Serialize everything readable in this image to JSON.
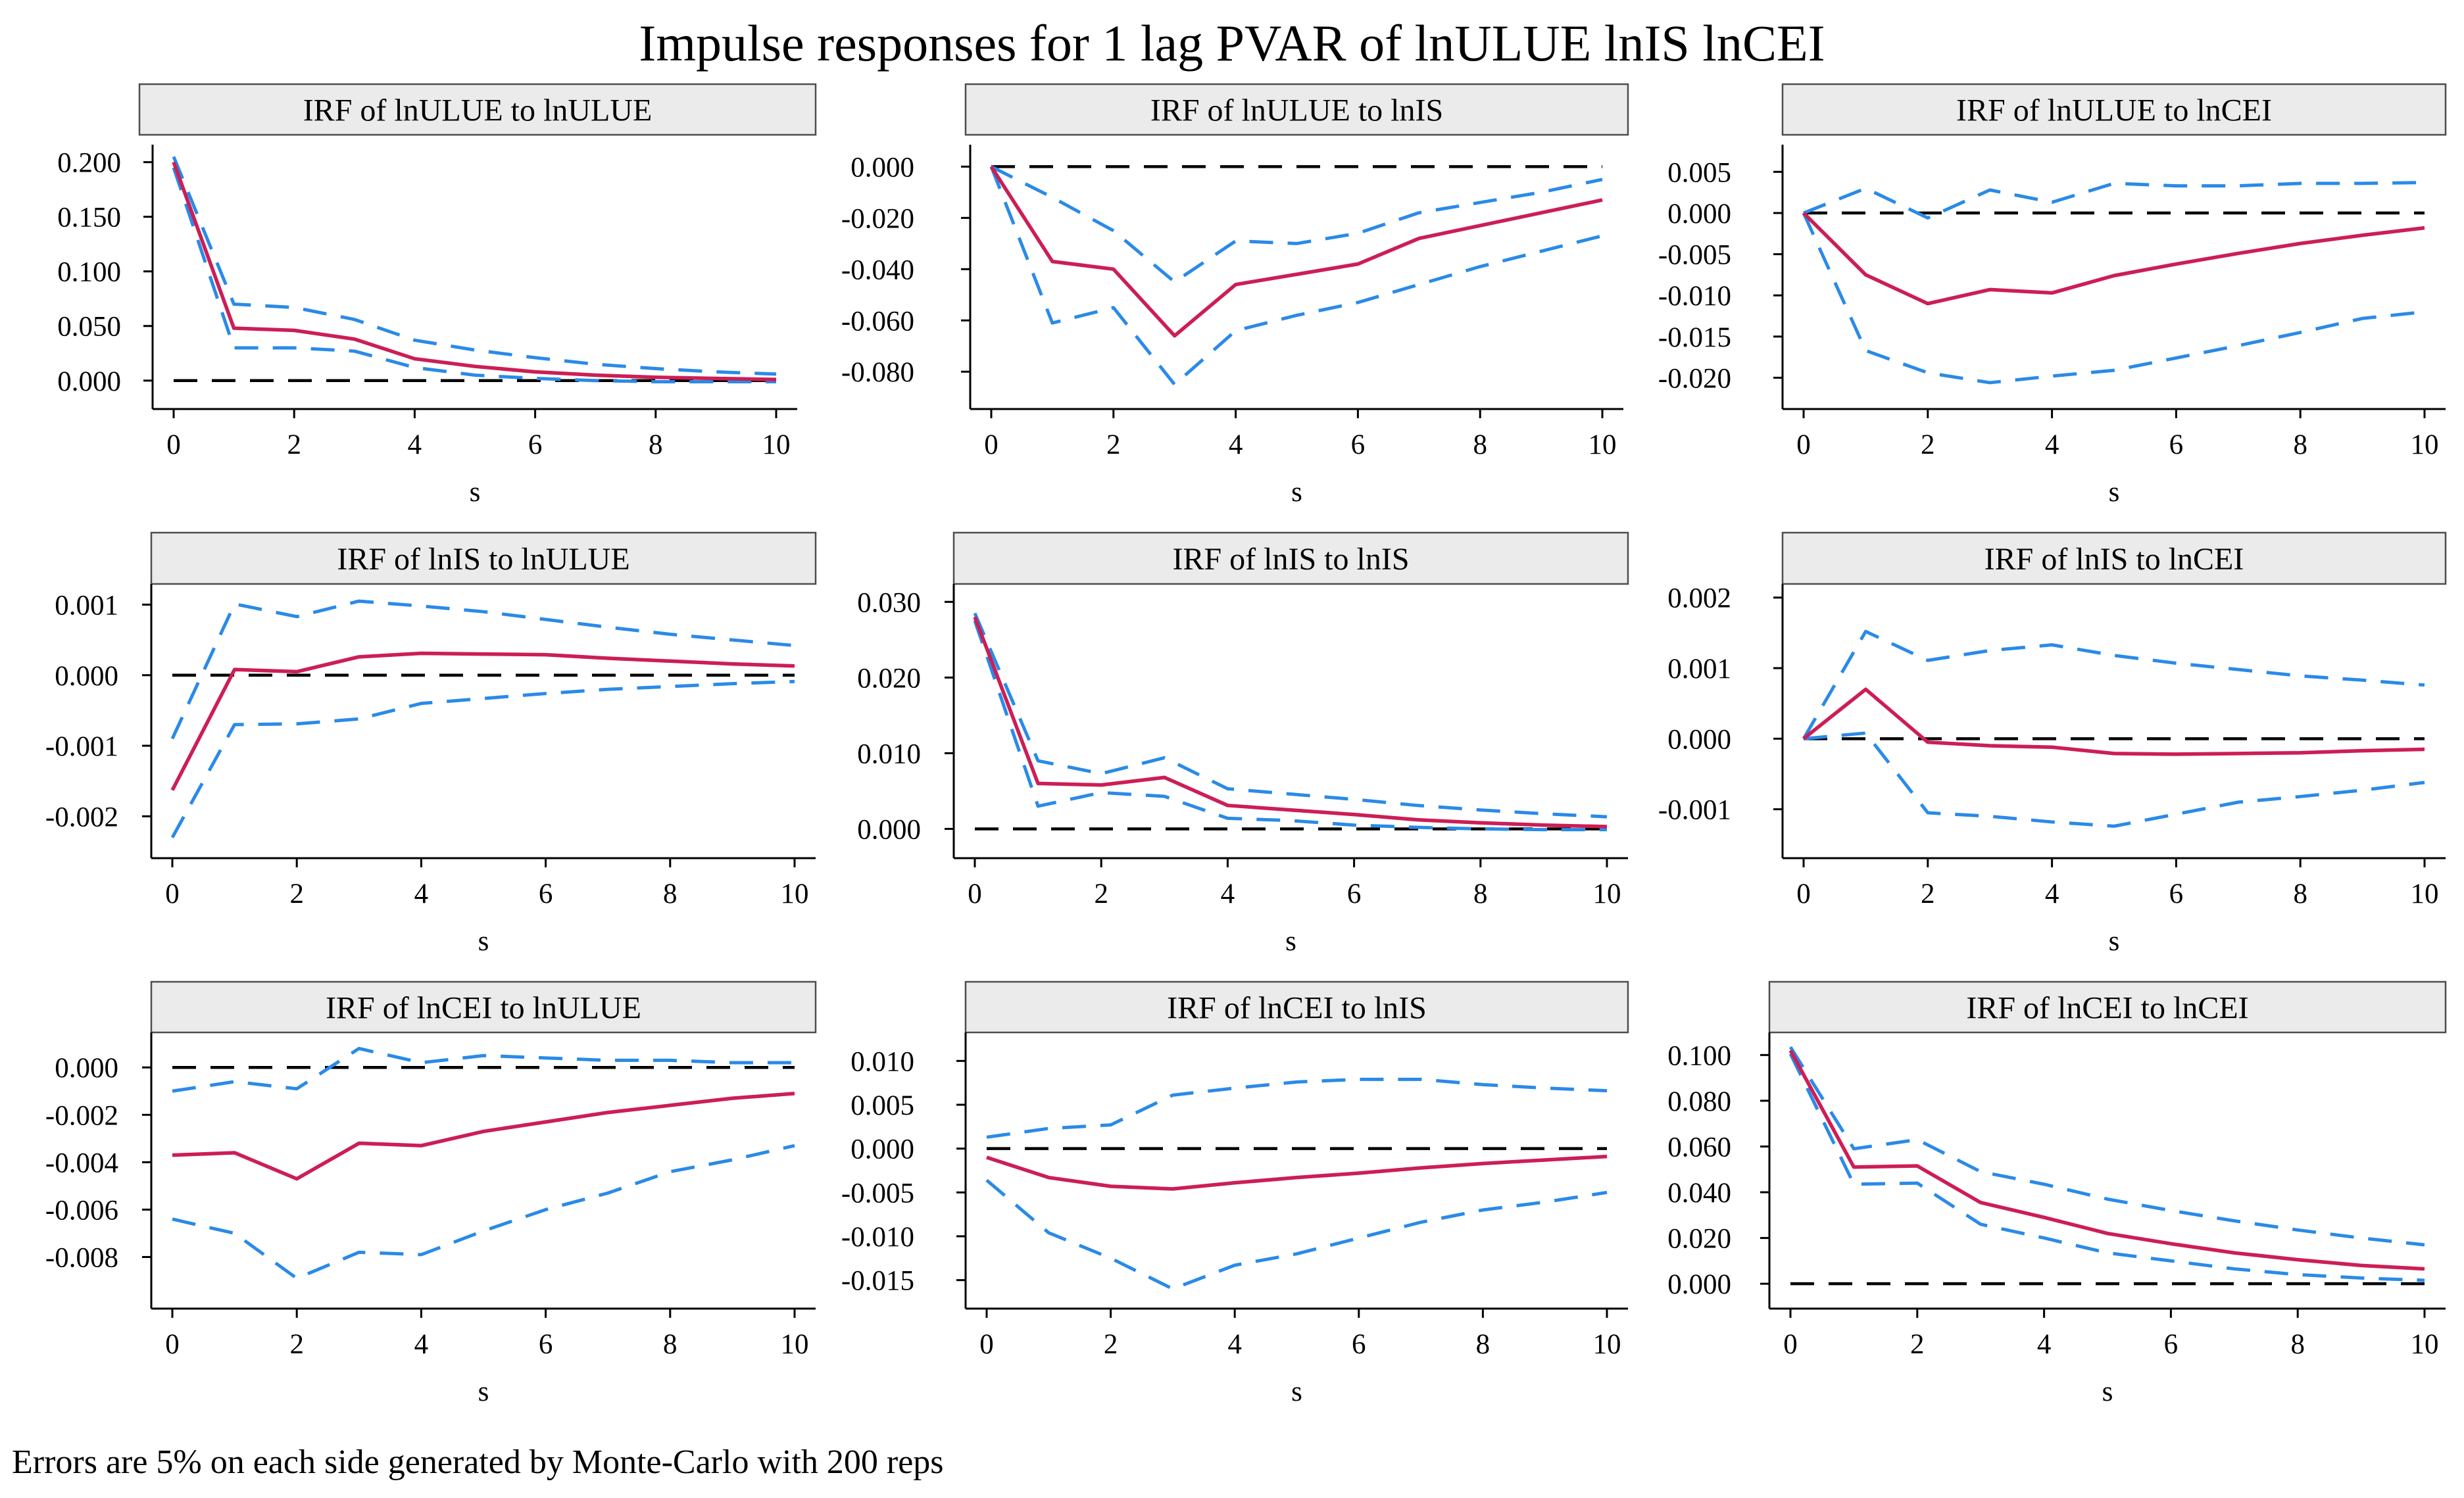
{
  "title": "Impulse responses for 1 lag PVAR of lnULUE lnIS lnCEI",
  "note": "Errors are 5% on each side generated by Monte-Carlo with 200 reps",
  "colors": {
    "irf": "#cc1e55",
    "ci": "#2a8ae8",
    "zero": "#000000",
    "strip": "#ebebeb"
  },
  "chart_data": [
    {
      "type": "line",
      "title": "IRF of lnULUE to lnULUE",
      "xlabel": "s",
      "x": [
        0,
        1,
        2,
        3,
        4,
        5,
        6,
        7,
        8,
        9,
        10
      ],
      "xticks": [
        "0",
        "2",
        "4",
        "6",
        "8",
        "10"
      ],
      "yticks": [
        "0.000",
        "0.050",
        "0.100",
        "0.150",
        "0.200"
      ],
      "ytick_values": [
        0,
        0.05,
        0.1,
        0.15,
        0.2
      ],
      "ylim": [
        -0.02,
        0.21
      ],
      "series": [
        {
          "role": "irf",
          "values": [
            0.2,
            0.048,
            0.046,
            0.038,
            0.02,
            0.013,
            0.008,
            0.005,
            0.003,
            0.002,
            0.001
          ]
        },
        {
          "role": "upper",
          "values": [
            0.205,
            0.07,
            0.067,
            0.056,
            0.037,
            0.028,
            0.021,
            0.015,
            0.011,
            0.008,
            0.006
          ]
        },
        {
          "role": "lower",
          "values": [
            0.195,
            0.03,
            0.03,
            0.027,
            0.012,
            0.005,
            0.002,
            0.0,
            -0.001,
            -0.001,
            -0.001
          ]
        }
      ]
    },
    {
      "type": "line",
      "title": "IRF of lnULUE to lnIS",
      "xlabel": "s",
      "x": [
        0,
        1,
        2,
        3,
        4,
        5,
        6,
        7,
        8,
        9,
        10
      ],
      "xticks": [
        "0",
        "2",
        "4",
        "6",
        "8",
        "10"
      ],
      "yticks": [
        "0.000",
        "-0.020",
        "-0.040",
        "-0.060",
        "-0.080"
      ],
      "ytick_values": [
        0,
        -0.02,
        -0.04,
        -0.06,
        -0.08
      ],
      "ylim": [
        -0.092,
        0.006
      ],
      "series": [
        {
          "role": "irf",
          "values": [
            0.0,
            -0.037,
            -0.04,
            -0.066,
            -0.046,
            -0.042,
            -0.038,
            -0.028,
            -0.023,
            -0.018,
            -0.013
          ]
        },
        {
          "role": "upper",
          "values": [
            0.0,
            -0.012,
            -0.025,
            -0.045,
            -0.029,
            -0.03,
            -0.026,
            -0.018,
            -0.014,
            -0.01,
            -0.005
          ]
        },
        {
          "role": "lower",
          "values": [
            0.0,
            -0.061,
            -0.055,
            -0.085,
            -0.064,
            -0.058,
            -0.053,
            -0.046,
            -0.039,
            -0.033,
            -0.027
          ]
        }
      ]
    },
    {
      "type": "line",
      "title": "IRF of lnULUE to lnCEI",
      "xlabel": "s",
      "x": [
        0,
        1,
        2,
        3,
        4,
        5,
        6,
        7,
        8,
        9,
        10
      ],
      "xticks": [
        "0",
        "2",
        "4",
        "6",
        "8",
        "10"
      ],
      "yticks": [
        "0.005",
        "0.000",
        "-0.005",
        "-0.010",
        "-0.015",
        "-0.020"
      ],
      "ytick_values": [
        0.005,
        0,
        -0.005,
        -0.01,
        -0.015,
        -0.02
      ],
      "ylim": [
        -0.023,
        0.0075
      ],
      "series": [
        {
          "role": "irf",
          "values": [
            0.0,
            -0.0075,
            -0.011,
            -0.0093,
            -0.0097,
            -0.0076,
            -0.0062,
            -0.0049,
            -0.0037,
            -0.0027,
            -0.0018
          ]
        },
        {
          "role": "upper",
          "values": [
            0.0,
            0.003,
            -0.0006,
            0.0028,
            0.0013,
            0.0036,
            0.0033,
            0.0033,
            0.0036,
            0.0036,
            0.0037
          ]
        },
        {
          "role": "lower",
          "values": [
            0.0,
            -0.0167,
            -0.0194,
            -0.0206,
            -0.0198,
            -0.0191,
            -0.0176,
            -0.0161,
            -0.0145,
            -0.0128,
            -0.012
          ]
        }
      ]
    },
    {
      "type": "line",
      "title": "IRF of lnIS to lnULUE",
      "xlabel": "s",
      "x": [
        0,
        1,
        2,
        3,
        4,
        5,
        6,
        7,
        8,
        9,
        10
      ],
      "xticks": [
        "0",
        "2",
        "4",
        "6",
        "8",
        "10"
      ],
      "yticks": [
        "0.001",
        "0.000",
        "-0.001",
        "-0.002"
      ],
      "ytick_values": [
        0.001,
        0,
        -0.001,
        -0.002
      ],
      "ylim": [
        -0.0025,
        0.0012
      ],
      "series": [
        {
          "role": "irf",
          "values": [
            -0.00163,
            8e-05,
            5e-05,
            0.00026,
            0.00031,
            0.0003,
            0.00029,
            0.00024,
            0.0002,
            0.00016,
            0.00013
          ]
        },
        {
          "role": "upper",
          "values": [
            -0.0009,
            0.00101,
            0.00083,
            0.00105,
            0.00098,
            0.0009,
            0.00079,
            0.00068,
            0.00058,
            0.0005,
            0.00042
          ]
        },
        {
          "role": "lower",
          "values": [
            -0.0023,
            -0.0007,
            -0.00069,
            -0.00062,
            -0.0004,
            -0.00033,
            -0.00026,
            -0.0002,
            -0.00016,
            -0.00012,
            -9e-05
          ]
        }
      ]
    },
    {
      "type": "line",
      "title": "IRF of lnIS to lnIS",
      "xlabel": "s",
      "x": [
        0,
        1,
        2,
        3,
        4,
        5,
        6,
        7,
        8,
        9,
        10
      ],
      "xticks": [
        "0",
        "2",
        "4",
        "6",
        "8",
        "10"
      ],
      "yticks": [
        "0.030",
        "0.020",
        "0.010",
        "0.000"
      ],
      "ytick_values": [
        0.03,
        0.02,
        0.01,
        0
      ],
      "ylim": [
        -0.003,
        0.0315
      ],
      "series": [
        {
          "role": "irf",
          "values": [
            0.028,
            0.006,
            0.0058,
            0.0068,
            0.0031,
            0.0025,
            0.0019,
            0.0012,
            0.0008,
            0.0005,
            0.0003
          ]
        },
        {
          "role": "upper",
          "values": [
            0.0285,
            0.009,
            0.0073,
            0.0094,
            0.0053,
            0.0046,
            0.0039,
            0.0031,
            0.0025,
            0.002,
            0.0016
          ]
        },
        {
          "role": "lower",
          "values": [
            0.0275,
            0.003,
            0.0048,
            0.0043,
            0.0014,
            0.0011,
            0.0005,
            0.0002,
            0.0,
            -0.0001,
            -0.0001
          ]
        }
      ]
    },
    {
      "type": "line",
      "title": "IRF of lnIS to lnCEI",
      "xlabel": "s",
      "x": [
        0,
        1,
        2,
        3,
        4,
        5,
        6,
        7,
        8,
        9,
        10
      ],
      "xticks": [
        "0",
        "2",
        "4",
        "6",
        "8",
        "10"
      ],
      "yticks": [
        "0.002",
        "0.001",
        "0.000",
        "-0.001"
      ],
      "ytick_values": [
        0.002,
        0.001,
        0,
        -0.001
      ],
      "ylim": [
        -0.0016,
        0.0021
      ],
      "series": [
        {
          "role": "irf",
          "values": [
            0.0,
            0.0007,
            -5e-05,
            -0.0001,
            -0.00012,
            -0.00021,
            -0.00022,
            -0.00021,
            -0.0002,
            -0.00017,
            -0.00015
          ]
        },
        {
          "role": "upper",
          "values": [
            0.0,
            0.00152,
            0.00111,
            0.00125,
            0.00133,
            0.00118,
            0.00107,
            0.00098,
            0.00089,
            0.00083,
            0.00076
          ]
        },
        {
          "role": "lower",
          "values": [
            0.0,
            8e-05,
            -0.00105,
            -0.0011,
            -0.00118,
            -0.00124,
            -0.00107,
            -0.0009,
            -0.00082,
            -0.00073,
            -0.00062
          ]
        }
      ]
    },
    {
      "type": "line",
      "title": "IRF of lnCEI to lnULUE",
      "xlabel": "s",
      "x": [
        0,
        1,
        2,
        3,
        4,
        5,
        6,
        7,
        8,
        9,
        10
      ],
      "xticks": [
        "0",
        "2",
        "4",
        "6",
        "8",
        "10"
      ],
      "yticks": [
        "0.000",
        "-0.002",
        "-0.004",
        "-0.006",
        "-0.008"
      ],
      "ytick_values": [
        0,
        -0.002,
        -0.004,
        -0.006,
        -0.008
      ],
      "ylim": [
        -0.0099,
        0.0012
      ],
      "series": [
        {
          "role": "irf",
          "values": [
            -0.0037,
            -0.0036,
            -0.0047,
            -0.0032,
            -0.0033,
            -0.0027,
            -0.0023,
            -0.0019,
            -0.0016,
            -0.0013,
            -0.0011
          ]
        },
        {
          "role": "upper",
          "values": [
            -0.001,
            -0.0006,
            -0.0009,
            0.0008,
            0.0002,
            0.0005,
            0.0004,
            0.0003,
            0.0003,
            0.0002,
            0.0002
          ]
        },
        {
          "role": "lower",
          "values": [
            -0.0064,
            -0.007,
            -0.0089,
            -0.0078,
            -0.0079,
            -0.0069,
            -0.006,
            -0.0053,
            -0.0044,
            -0.0039,
            -0.0033
          ]
        }
      ]
    },
    {
      "type": "line",
      "title": "IRF of lnCEI to lnIS",
      "xlabel": "s",
      "x": [
        0,
        1,
        2,
        3,
        4,
        5,
        6,
        7,
        8,
        9,
        10
      ],
      "xticks": [
        "0",
        "2",
        "4",
        "6",
        "8",
        "10"
      ],
      "yticks": [
        "0.010",
        "0.005",
        "0.000",
        "-0.005",
        "-0.010",
        "-0.015"
      ],
      "ytick_values": [
        0.01,
        0.005,
        0,
        -0.005,
        -0.01,
        -0.015
      ],
      "ylim": [
        -0.0175,
        0.0125
      ],
      "series": [
        {
          "role": "irf",
          "values": [
            -0.001,
            -0.0033,
            -0.0043,
            -0.0046,
            -0.0039,
            -0.0033,
            -0.0028,
            -0.0022,
            -0.0017,
            -0.0013,
            -0.0009
          ]
        },
        {
          "role": "upper",
          "values": [
            0.0013,
            0.0023,
            0.0027,
            0.0061,
            0.0069,
            0.0076,
            0.0079,
            0.0079,
            0.0073,
            0.0069,
            0.0066
          ]
        },
        {
          "role": "lower",
          "values": [
            -0.0036,
            -0.0096,
            -0.0125,
            -0.016,
            -0.0133,
            -0.012,
            -0.0102,
            -0.0084,
            -0.007,
            -0.0061,
            -0.005
          ]
        }
      ]
    },
    {
      "type": "line",
      "title": "IRF of lnCEI to lnCEI",
      "xlabel": "s",
      "x": [
        0,
        1,
        2,
        3,
        4,
        5,
        6,
        7,
        8,
        9,
        10
      ],
      "xticks": [
        "0",
        "2",
        "4",
        "6",
        "8",
        "10"
      ],
      "yticks": [
        "0.100",
        "0.080",
        "0.060",
        "0.040",
        "0.020",
        "0.000"
      ],
      "ytick_values": [
        0.1,
        0.08,
        0.06,
        0.04,
        0.02,
        0
      ],
      "ylim": [
        -0.008,
        0.107
      ],
      "series": [
        {
          "role": "irf",
          "values": [
            0.102,
            0.051,
            0.0515,
            0.0355,
            0.029,
            0.022,
            0.0175,
            0.0135,
            0.0105,
            0.008,
            0.0065
          ]
        },
        {
          "role": "upper",
          "values": [
            0.1035,
            0.059,
            0.063,
            0.049,
            0.0435,
            0.037,
            0.032,
            0.0275,
            0.0235,
            0.02,
            0.017
          ]
        },
        {
          "role": "lower",
          "values": [
            0.1005,
            0.0435,
            0.044,
            0.026,
            0.02,
            0.0135,
            0.01,
            0.0065,
            0.004,
            0.0025,
            0.0015
          ]
        }
      ]
    }
  ]
}
